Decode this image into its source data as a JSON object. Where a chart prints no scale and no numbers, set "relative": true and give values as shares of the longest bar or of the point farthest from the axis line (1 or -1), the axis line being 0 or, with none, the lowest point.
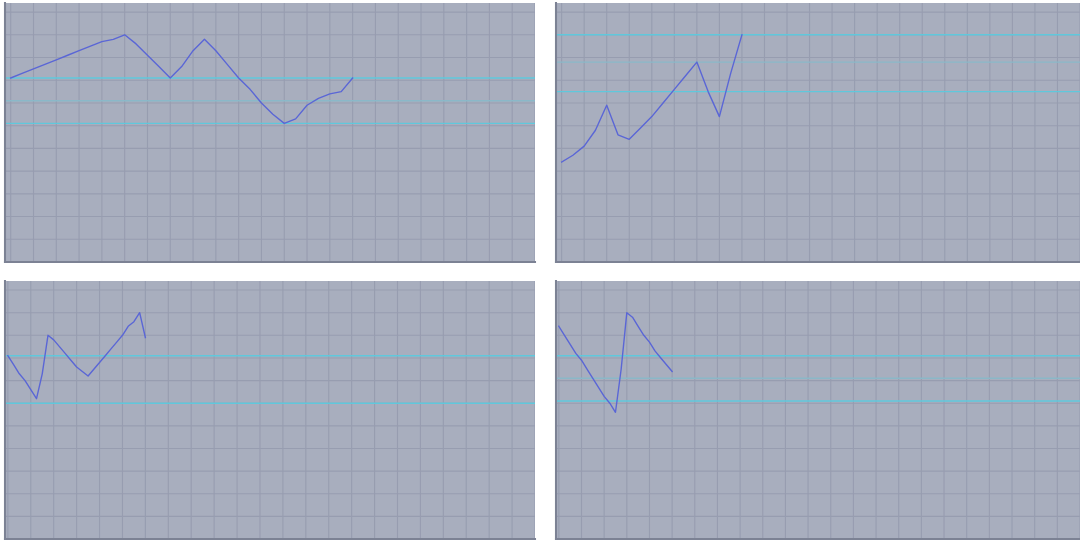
{
  "chart_data": [
    {
      "type": "line",
      "relative": true,
      "grid": true,
      "categories": [
        null,
        null,
        null,
        null,
        null,
        null,
        null,
        null,
        null,
        null,
        null,
        null,
        null,
        null,
        null,
        null,
        null,
        null,
        null,
        null,
        null,
        null,
        null,
        null,
        null,
        null,
        null,
        null,
        null,
        null,
        null,
        null,
        null,
        null,
        null,
        null,
        null,
        null,
        null,
        null,
        null,
        null,
        null,
        null,
        null,
        null,
        null
      ],
      "series": [
        {
          "color": "#5a66d6",
          "values": [
            0.81,
            0.83,
            0.85,
            0.87,
            0.89,
            0.91,
            0.93,
            0.95,
            0.97,
            0.98,
            1.0,
            0.96,
            0.91,
            0.86,
            0.81,
            0.86,
            0.93,
            0.98,
            0.93,
            0.87,
            0.81,
            0.76,
            0.7,
            0.65,
            0.61,
            0.63,
            0.69,
            0.72,
            0.74,
            0.75,
            0.81,
            null,
            null,
            null,
            null,
            null,
            null,
            null,
            null,
            null,
            null,
            null,
            null,
            null,
            null,
            null,
            null
          ]
        }
      ],
      "ref_lines": [
        {
          "axis": "y",
          "value": 0.81,
          "color": "#5fc8dc"
        },
        {
          "axis": "y",
          "value": 0.71,
          "color": "#8ab8c8"
        },
        {
          "axis": "y",
          "value": 0.61,
          "color": "#5fc8dc"
        }
      ]
    },
    {
      "type": "line",
      "relative": true,
      "grid": true,
      "categories": [
        null,
        null,
        null,
        null,
        null,
        null,
        null,
        null,
        null,
        null,
        null,
        null,
        null,
        null,
        null,
        null,
        null,
        null,
        null,
        null,
        null,
        null,
        null,
        null,
        null,
        null,
        null,
        null,
        null,
        null,
        null,
        null,
        null,
        null,
        null,
        null,
        null,
        null,
        null,
        null,
        null,
        null,
        null,
        null,
        null,
        null,
        null
      ],
      "series": [
        {
          "color": "#5a66d6",
          "values": [
            0.44,
            0.47,
            0.51,
            0.58,
            0.69,
            0.56,
            0.54,
            0.59,
            0.64,
            0.7,
            0.76,
            0.82,
            0.88,
            0.75,
            0.64,
            0.83,
            1.0,
            null,
            null,
            null,
            null,
            null,
            null,
            null,
            null,
            null,
            null,
            null,
            null,
            null,
            null,
            null,
            null,
            null,
            null,
            null,
            null,
            null,
            null,
            null,
            null,
            null,
            null,
            null,
            null,
            null,
            null
          ]
        }
      ],
      "ref_lines": [
        {
          "axis": "y",
          "value": 1.0,
          "color": "#5fc8dc"
        },
        {
          "axis": "y",
          "value": 0.88,
          "color": "#8ab8c8"
        },
        {
          "axis": "y",
          "value": 0.75,
          "color": "#5fc8dc"
        }
      ]
    },
    {
      "type": "line",
      "relative": true,
      "grid": true,
      "categories": [
        null,
        null,
        null,
        null,
        null,
        null,
        null,
        null,
        null,
        null,
        null,
        null,
        null,
        null,
        null,
        null,
        null,
        null,
        null,
        null,
        null,
        null,
        null,
        null,
        null,
        null,
        null,
        null,
        null,
        null,
        null,
        null,
        null,
        null,
        null,
        null,
        null,
        null,
        null,
        null,
        null,
        null,
        null,
        null,
        null,
        null,
        null,
        null,
        null,
        null,
        null,
        null,
        null,
        null,
        null,
        null,
        null,
        null,
        null,
        null,
        null,
        null,
        null,
        null,
        null,
        null,
        null,
        null,
        null,
        null,
        null,
        null,
        null,
        null,
        null,
        null,
        null,
        null,
        null,
        null,
        null,
        null,
        null,
        null,
        null,
        null,
        null,
        null,
        null,
        null,
        null,
        null,
        null
      ],
      "series": [
        {
          "color": "#5a66d6",
          "values": [
            0.81,
            0.77,
            0.73,
            0.7,
            0.66,
            0.62,
            0.73,
            0.9,
            0.88,
            0.85,
            0.82,
            0.79,
            0.76,
            0.74,
            0.72,
            0.75,
            0.78,
            0.81,
            0.84,
            0.87,
            0.9,
            0.94,
            0.96,
            1.0,
            0.89,
            null,
            null,
            null,
            null,
            null,
            null,
            null,
            null,
            null,
            null,
            null,
            null,
            null,
            null,
            null,
            null,
            null,
            null,
            null,
            null,
            null,
            null,
            null,
            null,
            null,
            null,
            null,
            null,
            null,
            null,
            null,
            null,
            null,
            null,
            null,
            null,
            null,
            null,
            null,
            null,
            null,
            null,
            null,
            null,
            null,
            null,
            null,
            null,
            null,
            null,
            null,
            null,
            null,
            null,
            null,
            null,
            null,
            null,
            null,
            null,
            null,
            null,
            null,
            null,
            null,
            null,
            null,
            null
          ]
        }
      ],
      "ref_lines": [
        {
          "axis": "y",
          "value": 0.81,
          "color": "#5fc8dc"
        },
        {
          "axis": "y",
          "value": 0.6,
          "color": "#5fc8dc"
        }
      ]
    },
    {
      "type": "line",
      "relative": true,
      "grid": true,
      "categories": [
        null,
        null,
        null,
        null,
        null,
        null,
        null,
        null,
        null,
        null,
        null,
        null,
        null,
        null,
        null,
        null,
        null,
        null,
        null,
        null,
        null,
        null,
        null,
        null,
        null,
        null,
        null,
        null,
        null,
        null,
        null,
        null,
        null,
        null,
        null,
        null,
        null,
        null,
        null,
        null,
        null,
        null,
        null,
        null,
        null,
        null,
        null,
        null,
        null,
        null,
        null,
        null,
        null,
        null,
        null,
        null,
        null,
        null,
        null,
        null,
        null,
        null,
        null,
        null,
        null,
        null,
        null,
        null,
        null,
        null,
        null,
        null,
        null,
        null,
        null,
        null,
        null,
        null,
        null,
        null,
        null,
        null,
        null,
        null,
        null,
        null,
        null,
        null,
        null,
        null,
        null,
        null,
        null
      ],
      "series": [
        {
          "color": "#5a66d6",
          "values": [
            0.94,
            0.9,
            0.86,
            0.82,
            0.79,
            0.75,
            0.71,
            0.67,
            0.63,
            0.6,
            0.56,
            0.75,
            1.0,
            0.98,
            0.94,
            0.9,
            0.87,
            0.83,
            0.8,
            0.77,
            0.74,
            null,
            null,
            null,
            null,
            null,
            null,
            null,
            null,
            null,
            null,
            null,
            null,
            null,
            null,
            null,
            null,
            null,
            null,
            null,
            null,
            null,
            null,
            null,
            null,
            null,
            null,
            null,
            null,
            null,
            null,
            null,
            null,
            null,
            null,
            null,
            null,
            null,
            null,
            null,
            null,
            null,
            null,
            null,
            null,
            null,
            null,
            null,
            null,
            null,
            null,
            null,
            null,
            null,
            null,
            null,
            null,
            null,
            null,
            null,
            null,
            null,
            null,
            null,
            null,
            null,
            null,
            null,
            null,
            null,
            null,
            null,
            null
          ]
        }
      ],
      "ref_lines": [
        {
          "axis": "y",
          "value": 0.81,
          "color": "#5fc8dc"
        },
        {
          "axis": "y",
          "value": 0.71,
          "color": "#8ab8c8"
        },
        {
          "axis": "y",
          "value": 0.61,
          "color": "#5fc8dc"
        }
      ]
    }
  ]
}
